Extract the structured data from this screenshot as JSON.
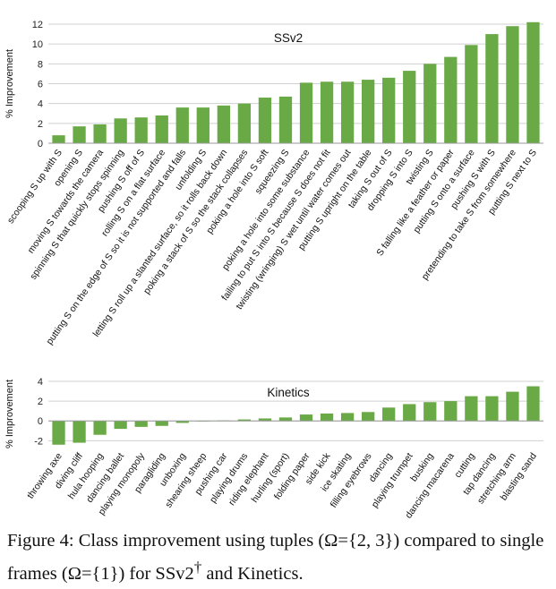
{
  "colors": {
    "bar": "#6aaa46",
    "grid": "#d0d0d0",
    "axis": "#9a9a9a"
  },
  "chart_data": [
    {
      "type": "bar",
      "title": "SSv2",
      "ylabel": "% Improvement",
      "ylim": [
        0,
        12
      ],
      "yticks": [
        0,
        2,
        4,
        6,
        8,
        10,
        12
      ],
      "grid": true,
      "categories": [
        "scooping S up with S",
        "opening S",
        "moving S towards the camera",
        "spinning S that quickly stops spinning",
        "pushing S off of S",
        "rolling S on a flat surface",
        "putting S on the edge of S so it is not supported and falls",
        "unfolding S",
        "letting S roll up a slanted surface, so it rolls back down",
        "poking a stack of S so the stack collapses",
        "poking a hole into S soft",
        "squeezing S",
        "poking a hole into some substance",
        "failing to put S into S because S does not fit",
        "twisting (wringing) S wet until water comes out",
        "putting S upright on the table",
        "taking S out of S",
        "dropping S into S",
        "twisting S",
        "S falling like a feather or paper",
        "putting S onto a surface",
        "pushing S with S",
        "pretending to take S from somewhere",
        "putting S next to S"
      ],
      "values": [
        0.8,
        1.7,
        1.9,
        2.5,
        2.6,
        2.8,
        3.6,
        3.6,
        3.8,
        4.0,
        4.6,
        4.7,
        6.1,
        6.2,
        6.2,
        6.4,
        6.6,
        7.3,
        8.0,
        8.7,
        9.9,
        11.0,
        11.8,
        12.2
      ]
    },
    {
      "type": "bar",
      "title": "Kinetics",
      "ylabel": "% Improvement",
      "ylim": [
        -2.6,
        4
      ],
      "yticks": [
        -2,
        0,
        2,
        4
      ],
      "grid": true,
      "categories": [
        "throwing axe",
        "diving cliff",
        "hula hooping",
        "dancing ballet",
        "playing monopoly",
        "paragliding",
        "unboxing",
        "shearing sheep",
        "pushing car",
        "playing drums",
        "riding elephant",
        "hurling (sport)",
        "folding paper",
        "side kick",
        "ice skating",
        "filling eyebrows",
        "dancing",
        "playing trumpet",
        "busking",
        "dancing macarena",
        "cutting",
        "tap dancing",
        "stretching arm",
        "blasting sand"
      ],
      "values": [
        -2.4,
        -2.2,
        -1.4,
        -0.8,
        -0.6,
        -0.5,
        -0.2,
        0.0,
        0.05,
        0.15,
        0.25,
        0.35,
        0.65,
        0.75,
        0.8,
        0.9,
        1.35,
        1.7,
        1.9,
        2.0,
        2.5,
        2.5,
        2.95,
        3.5
      ]
    }
  ],
  "caption": {
    "text": "Figure 4: Class improvement using tuples (Ω={2, 3}) compared to single frames (Ω={1}) for SSv2",
    "dagger": "†",
    "tail": " and Kinetics."
  }
}
